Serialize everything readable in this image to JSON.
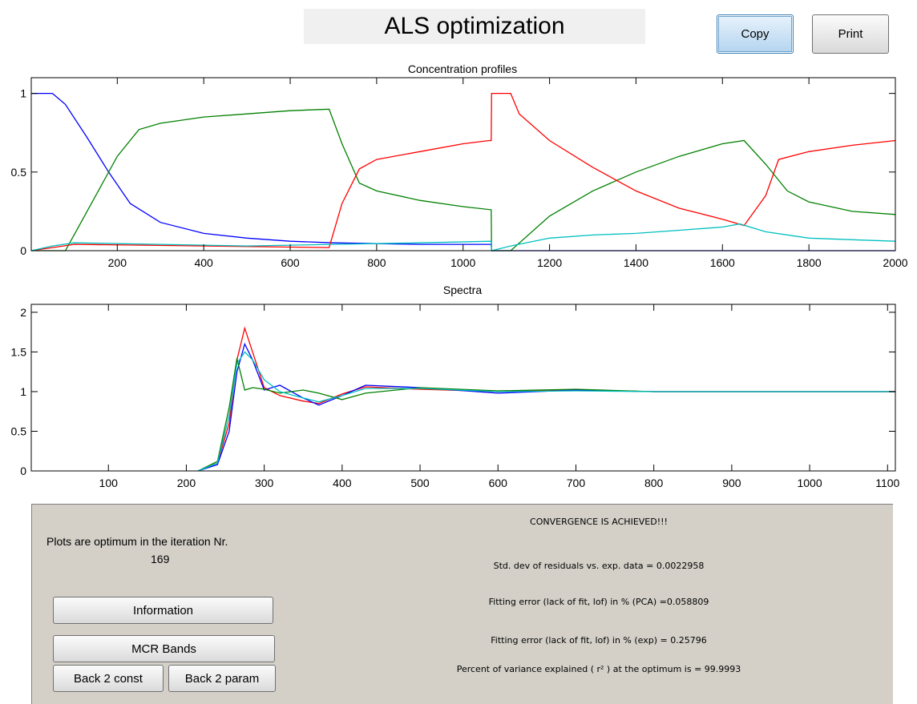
{
  "header": {
    "title": "ALS optimization",
    "copy_label": "Copy",
    "print_label": "Print"
  },
  "colors": {
    "blue": "#0000ff",
    "green": "#008000",
    "red": "#ff0000",
    "cyan": "#00bfbf",
    "panel": "#d4d0c8",
    "title_bg": "#f0f0f0"
  },
  "chart_data": [
    {
      "type": "line",
      "title": "Concentration profiles",
      "xlabel": "Spectra",
      "ylabel": "",
      "xlim": [
        1,
        2000
      ],
      "ylim": [
        0,
        1.1
      ],
      "xticks": [
        200,
        400,
        600,
        800,
        1000,
        1200,
        1400,
        1600,
        1800,
        2000
      ],
      "yticks": [
        0,
        0.5,
        1
      ],
      "ytick_labels": [
        "0",
        "0.5",
        "1"
      ],
      "series": [
        {
          "color": "#0000ff",
          "x": [
            1,
            50,
            80,
            130,
            180,
            230,
            300,
            400,
            500,
            600,
            700,
            800,
            900,
            1000,
            1065,
            1066,
            1120,
            1300,
            1500,
            1700,
            1800,
            2000
          ],
          "y": [
            1,
            1,
            0.93,
            0.72,
            0.5,
            0.3,
            0.18,
            0.11,
            0.08,
            0.06,
            0.05,
            0.045,
            0.04,
            0.04,
            0.04,
            0,
            0,
            0,
            0,
            0,
            0,
            0
          ]
        },
        {
          "color": "#008000",
          "x": [
            1,
            80,
            100,
            150,
            200,
            250,
            300,
            400,
            500,
            600,
            690,
            720,
            760,
            800,
            900,
            1000,
            1065,
            1066,
            1110,
            1200,
            1300,
            1400,
            1500,
            1600,
            1650,
            1700,
            1750,
            1800,
            1900,
            2000
          ],
          "y": [
            0,
            0,
            0.1,
            0.35,
            0.6,
            0.77,
            0.81,
            0.85,
            0.87,
            0.89,
            0.9,
            0.68,
            0.43,
            0.38,
            0.32,
            0.28,
            0.26,
            0,
            0,
            0.22,
            0.38,
            0.5,
            0.6,
            0.68,
            0.7,
            0.55,
            0.38,
            0.31,
            0.25,
            0.23
          ]
        },
        {
          "color": "#ff0000",
          "x": [
            1,
            50,
            100,
            690,
            720,
            760,
            800,
            900,
            1000,
            1060,
            1065,
            1066,
            1110,
            1130,
            1200,
            1300,
            1400,
            1500,
            1600,
            1650,
            1700,
            1730,
            1800,
            1900,
            2000
          ],
          "y": [
            0,
            0.02,
            0.04,
            0.02,
            0.3,
            0.52,
            0.58,
            0.63,
            0.68,
            0.7,
            0.7,
            1.0,
            1.0,
            0.87,
            0.7,
            0.53,
            0.38,
            0.27,
            0.2,
            0.16,
            0.35,
            0.58,
            0.63,
            0.67,
            0.7
          ]
        },
        {
          "color": "#00bfbf",
          "x": [
            1,
            50,
            100,
            300,
            500,
            700,
            900,
            1065,
            1066,
            1110,
            1200,
            1300,
            1400,
            1500,
            1600,
            1640,
            1700,
            1800,
            1900,
            2000
          ],
          "y": [
            0,
            0.03,
            0.05,
            0.04,
            0.03,
            0.04,
            0.05,
            0.06,
            0,
            0.03,
            0.08,
            0.1,
            0.11,
            0.13,
            0.15,
            0.17,
            0.12,
            0.08,
            0.07,
            0.06
          ]
        }
      ]
    },
    {
      "type": "line",
      "title": "",
      "xlabel": "",
      "ylabel": "",
      "xlim": [
        1,
        1110
      ],
      "ylim": [
        0,
        2.1
      ],
      "xticks": [
        100,
        200,
        300,
        400,
        500,
        600,
        700,
        800,
        900,
        1000,
        1100
      ],
      "yticks": [
        0,
        0.5,
        1,
        1.5,
        2
      ],
      "ytick_labels": [
        "0",
        "0.5",
        "1",
        "1.5",
        "2"
      ],
      "series": [
        {
          "color": "#ff0000",
          "x": [
            215,
            240,
            255,
            265,
            275,
            285,
            300,
            320,
            350,
            370,
            400,
            430,
            500,
            600,
            700,
            800,
            900,
            1000,
            1110
          ],
          "y": [
            0,
            0.1,
            0.6,
            1.4,
            1.8,
            1.5,
            1.05,
            0.95,
            0.88,
            0.85,
            0.97,
            1.06,
            1.03,
            1.0,
            1.02,
            1.0,
            1.0,
            1.0,
            1.0
          ]
        },
        {
          "color": "#0000ff",
          "x": [
            215,
            240,
            255,
            265,
            275,
            285,
            300,
            320,
            350,
            370,
            400,
            430,
            500,
            600,
            700,
            800,
            900,
            1000,
            1110
          ],
          "y": [
            0,
            0.08,
            0.5,
            1.25,
            1.6,
            1.4,
            1.02,
            1.08,
            0.92,
            0.83,
            0.95,
            1.08,
            1.05,
            0.98,
            1.02,
            1.0,
            1.0,
            1.0,
            1.0
          ]
        },
        {
          "color": "#008000",
          "x": [
            215,
            240,
            255,
            265,
            275,
            285,
            300,
            320,
            350,
            370,
            400,
            430,
            500,
            600,
            700,
            800,
            900,
            1000,
            1110
          ],
          "y": [
            0,
            0.12,
            0.8,
            1.42,
            1.02,
            1.05,
            1.03,
            0.98,
            1.02,
            0.98,
            0.9,
            0.98,
            1.05,
            1.01,
            1.03,
            1.0,
            1.0,
            1.0,
            1.0
          ]
        },
        {
          "color": "#00bfbf",
          "x": [
            215,
            240,
            255,
            265,
            275,
            285,
            300,
            320,
            350,
            370,
            400,
            430,
            500,
            600,
            700,
            800,
            900,
            1000,
            1110
          ],
          "y": [
            0,
            0.1,
            0.7,
            1.35,
            1.5,
            1.4,
            1.15,
            1.0,
            0.92,
            0.87,
            0.95,
            1.04,
            1.04,
            1.0,
            1.01,
            1.0,
            1.0,
            1.0,
            1.0
          ]
        }
      ]
    }
  ],
  "panel": {
    "optimum_line1": "Plots are optimum in the iteration Nr.",
    "optimum_iteration": "169",
    "convergence": "CONVERGENCE IS ACHIEVED!!!",
    "std_dev": "Std. dev of residuals vs. exp. data = 0.0022958",
    "lof_pca": "Fitting error (lack of fit, lof) in % (PCA) =0.058809",
    "lof_exp": "Fitting error (lack of fit, lof) in % (exp) = 0.25796",
    "variance": "Percent of variance explained ( r² ) at the optimum is = 99.9993",
    "information_label": "Information",
    "mcr_bands_label": "MCR Bands",
    "back_const_label": "Back 2 const",
    "back_param_label": "Back 2 param"
  }
}
